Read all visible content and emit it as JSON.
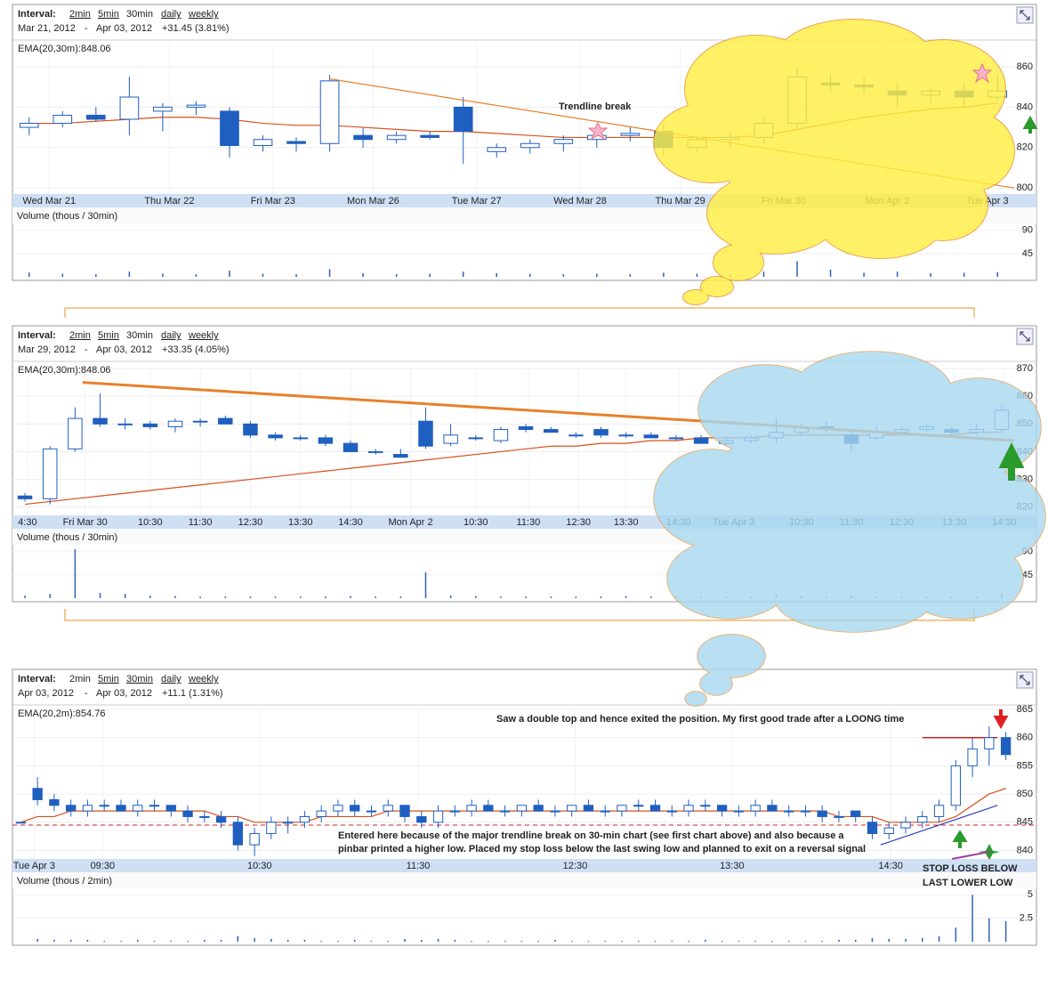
{
  "chart_data": [
    {
      "type": "candlestick",
      "interval_label": "Interval:",
      "intervals": [
        "2min",
        "5min",
        "30min",
        "daily",
        "weekly"
      ],
      "selected": "30min",
      "date_from": "Mar 21, 2012",
      "date_separator": "-",
      "date_to": "Apr 03, 2012",
      "change": "+31.45 (3.81%)",
      "ema_label": "EMA(20,30m):848.06",
      "volume_label": "Volume (thous / 30min)",
      "ylim": [
        797,
        871
      ],
      "yticks": [
        800,
        820,
        840,
        860
      ],
      "xlim": [
        0,
        30
      ],
      "xticks": [
        {
          "value": 1.1,
          "label": "Wed Mar 21"
        },
        {
          "value": 4.7,
          "label": "Thu Mar 22"
        },
        {
          "value": 7.8,
          "label": "Fri Mar 23"
        },
        {
          "value": 10.8,
          "label": "Mon Mar 26"
        },
        {
          "value": 13.9,
          "label": "Tue Mar 27"
        },
        {
          "value": 17.0,
          "label": "Wed Mar 28"
        },
        {
          "value": 20.0,
          "label": "Thu Mar 29"
        },
        {
          "value": 23.1,
          "label": "Fri Mar 30"
        },
        {
          "value": 26.2,
          "label": "Mon Apr 2"
        },
        {
          "value": 29.2,
          "label": "Tue Apr 3"
        }
      ],
      "ohlc": [
        [
          830,
          835,
          826,
          832
        ],
        [
          832,
          838,
          830,
          836
        ],
        [
          836,
          840,
          833,
          834
        ],
        [
          834,
          855,
          826,
          845
        ],
        [
          838,
          842,
          828,
          840
        ],
        [
          840,
          843,
          836,
          841
        ],
        [
          838,
          840,
          815,
          821
        ],
        [
          821,
          826,
          818,
          824
        ],
        [
          823,
          825,
          818,
          822
        ],
        [
          822,
          856,
          818,
          853
        ],
        [
          826,
          830,
          820,
          824
        ],
        [
          824,
          828,
          822,
          826
        ],
        [
          826,
          828,
          824,
          825
        ],
        [
          840,
          845,
          812,
          828
        ],
        [
          818,
          822,
          815,
          820
        ],
        [
          820,
          824,
          817,
          822
        ],
        [
          822,
          826,
          818,
          824
        ],
        [
          824,
          828,
          820,
          826
        ],
        [
          826,
          830,
          823,
          827
        ],
        [
          828,
          832,
          816,
          820
        ],
        [
          820,
          826,
          818,
          824
        ],
        [
          824,
          828,
          820,
          825
        ],
        [
          825,
          835,
          822,
          832
        ],
        [
          832,
          860,
          830,
          855
        ],
        [
          852,
          856,
          848,
          851
        ],
        [
          851,
          855,
          847,
          850
        ],
        [
          848,
          852,
          840,
          846
        ],
        [
          846,
          850,
          842,
          848
        ],
        [
          848,
          852,
          840,
          845
        ],
        [
          845,
          856,
          843,
          848
        ]
      ],
      "ema": [
        832,
        832,
        833,
        834,
        835,
        835,
        834,
        832,
        831,
        831,
        830,
        829,
        828,
        828,
        827,
        826,
        825,
        825,
        825,
        825,
        825,
        825,
        826,
        829,
        832,
        835,
        837,
        839,
        840,
        842
      ],
      "volume": [
        8,
        6,
        5,
        10,
        6,
        5,
        12,
        6,
        5,
        15,
        7,
        5,
        6,
        10,
        7,
        6,
        5,
        6,
        5,
        8,
        6,
        5,
        10,
        30,
        14,
        8,
        10,
        7,
        8,
        9
      ],
      "volume_ylim": [
        0,
        100
      ],
      "volume_yticks": [
        45,
        90
      ],
      "trendline": {
        "x": [
          9.5,
          30
        ],
        "y": [
          854,
          800
        ]
      },
      "annotations": [
        "Trendline break"
      ]
    },
    {
      "type": "candlestick",
      "interval_label": "Interval:",
      "intervals": [
        "2min",
        "5min",
        "30min",
        "daily",
        "weekly"
      ],
      "selected": "30min",
      "date_from": "Mar 29, 2012",
      "date_separator": "-",
      "date_to": "Apr 03, 2012",
      "change": "+33.35 (4.05%)",
      "ema_label": "EMA(20,30m):848.06",
      "volume_label": "Volume (thous / 30min)",
      "ylim": [
        817,
        871
      ],
      "yticks": [
        820,
        830,
        840,
        850,
        860,
        870
      ],
      "xlim": [
        0,
        40
      ],
      "xticks": [
        {
          "value": 0.6,
          "label": "4:30"
        },
        {
          "value": 2.9,
          "label": "Fri Mar 30"
        },
        {
          "value": 5.5,
          "label": "10:30"
        },
        {
          "value": 7.5,
          "label": "11:30"
        },
        {
          "value": 9.5,
          "label": "12:30"
        },
        {
          "value": 11.5,
          "label": "13:30"
        },
        {
          "value": 13.5,
          "label": "14:30"
        },
        {
          "value": 15.9,
          "label": "Mon Apr 2"
        },
        {
          "value": 18.5,
          "label": "10:30"
        },
        {
          "value": 20.6,
          "label": "11:30"
        },
        {
          "value": 22.6,
          "label": "12:30"
        },
        {
          "value": 24.5,
          "label": "13:30"
        },
        {
          "value": 26.6,
          "label": "14:30"
        },
        {
          "value": 28.8,
          "label": "Tue Apr 3"
        },
        {
          "value": 31.5,
          "label": "10:30"
        },
        {
          "value": 33.5,
          "label": "11:30"
        },
        {
          "value": 35.5,
          "label": "12:30"
        },
        {
          "value": 37.6,
          "label": "13:30"
        },
        {
          "value": 39.6,
          "label": "14:30"
        }
      ],
      "ohlc": [
        [
          824,
          825,
          822,
          823
        ],
        [
          823,
          842,
          821,
          841
        ],
        [
          841,
          856,
          840,
          852
        ],
        [
          852,
          861,
          849,
          850
        ],
        [
          850,
          852,
          848,
          850
        ],
        [
          850,
          851,
          848,
          849
        ],
        [
          849,
          852,
          847,
          851
        ],
        [
          851,
          852,
          849,
          851
        ],
        [
          852,
          853,
          850,
          850
        ],
        [
          850,
          851,
          845,
          846
        ],
        [
          846,
          847,
          844,
          845
        ],
        [
          845,
          846,
          844,
          845
        ],
        [
          845,
          846,
          842,
          843
        ],
        [
          843,
          844,
          840,
          840
        ],
        [
          840,
          841,
          839,
          840
        ],
        [
          839,
          841,
          838,
          838
        ],
        [
          851,
          856,
          841,
          842
        ],
        [
          843,
          850,
          842,
          846
        ],
        [
          845,
          846,
          844,
          845
        ],
        [
          844,
          849,
          843,
          848
        ],
        [
          849,
          850,
          847,
          848
        ],
        [
          848,
          849,
          847,
          847
        ],
        [
          846,
          847,
          845,
          846
        ],
        [
          848,
          849,
          845,
          846
        ],
        [
          846,
          847,
          845,
          846
        ],
        [
          846,
          847,
          845,
          845
        ],
        [
          845,
          846,
          844,
          845
        ],
        [
          845,
          846,
          843,
          843
        ],
        [
          843,
          845,
          842,
          844
        ],
        [
          844,
          846,
          843,
          845
        ],
        [
          845,
          852,
          843,
          847
        ],
        [
          847,
          850,
          846,
          849
        ],
        [
          849,
          851,
          847,
          848
        ],
        [
          846,
          848,
          840,
          843
        ],
        [
          845,
          849,
          844,
          847
        ],
        [
          847,
          849,
          846,
          848
        ],
        [
          848,
          850,
          847,
          849
        ],
        [
          848,
          849,
          846,
          847
        ],
        [
          847,
          850,
          846,
          848
        ],
        [
          848,
          857,
          847,
          855
        ]
      ],
      "ema": [
        821,
        822,
        823,
        824,
        825,
        826,
        827,
        828,
        829,
        830,
        831,
        832,
        833,
        834,
        835,
        836,
        837,
        838,
        839,
        840,
        841,
        842,
        842,
        843,
        843,
        844,
        844,
        845,
        845,
        845,
        846,
        846,
        846,
        846,
        846,
        846,
        846,
        846,
        847,
        847
      ],
      "volume": [
        5,
        8,
        95,
        10,
        8,
        5,
        4,
        3,
        3,
        3,
        3,
        3,
        3,
        4,
        3,
        3,
        50,
        5,
        4,
        3,
        3,
        3,
        3,
        3,
        4,
        3,
        3,
        3,
        3,
        3,
        6,
        4,
        3,
        5,
        3,
        3,
        3,
        3,
        3,
        8
      ],
      "volume_ylim": [
        0,
        100
      ],
      "volume_yticks": [
        45,
        90
      ],
      "trendline": {
        "x": [
          2.8,
          40
        ],
        "y": [
          865,
          844
        ]
      },
      "annotations": []
    },
    {
      "type": "candlestick",
      "interval_label": "Interval:",
      "intervals": [
        "2min",
        "5min",
        "30min",
        "daily",
        "weekly"
      ],
      "selected": "2min",
      "date_from": "Apr 03, 2012",
      "date_separator": "-",
      "date_to": "Apr 03, 2012",
      "change": "+11.1 (1.31%)",
      "ema_label": "EMA(20,2m):854.76",
      "volume_label": "Volume (thous / 2min)",
      "ylim": [
        838.5,
        865
      ],
      "yticks": [
        840,
        845,
        850,
        855,
        860,
        865
      ],
      "xlim": [
        0,
        60
      ],
      "xticks": [
        {
          "value": 1.3,
          "label": "Tue Apr 3"
        },
        {
          "value": 5.4,
          "label": "09:30"
        },
        {
          "value": 14.8,
          "label": "10:30"
        },
        {
          "value": 24.3,
          "label": "11:30"
        },
        {
          "value": 33.7,
          "label": "12:30"
        },
        {
          "value": 43.1,
          "label": "13:30"
        },
        {
          "value": 52.6,
          "label": "14:30"
        }
      ],
      "ohlc": [
        [
          845,
          845,
          845,
          845
        ],
        [
          851,
          853,
          848,
          849
        ],
        [
          849,
          850,
          847,
          848
        ],
        [
          848,
          849,
          846,
          847
        ],
        [
          847,
          849,
          846,
          848
        ],
        [
          848,
          849,
          847,
          848
        ],
        [
          848,
          849,
          847,
          847
        ],
        [
          847,
          849,
          846,
          848
        ],
        [
          848,
          849,
          847,
          848
        ],
        [
          848,
          848,
          846,
          847
        ],
        [
          847,
          848,
          845,
          846
        ],
        [
          846,
          847,
          845,
          846
        ],
        [
          846,
          847,
          844,
          845
        ],
        [
          845,
          846,
          840,
          841
        ],
        [
          841,
          844,
          839,
          843
        ],
        [
          843,
          846,
          842,
          845
        ],
        [
          845,
          846,
          843,
          845
        ],
        [
          845,
          847,
          844,
          846
        ],
        [
          846,
          848,
          845,
          847
        ],
        [
          847,
          849,
          846,
          848
        ],
        [
          848,
          849,
          846,
          847
        ],
        [
          847,
          848,
          846,
          847
        ],
        [
          847,
          849,
          846,
          848
        ],
        [
          848,
          848,
          845,
          846
        ],
        [
          846,
          847,
          844,
          845
        ],
        [
          845,
          848,
          844,
          847
        ],
        [
          847,
          848,
          846,
          847
        ],
        [
          847,
          849,
          846,
          848
        ],
        [
          848,
          849,
          847,
          847
        ],
        [
          847,
          848,
          846,
          847
        ],
        [
          847,
          848,
          846,
          848
        ],
        [
          848,
          849,
          847,
          847
        ],
        [
          847,
          848,
          846,
          847
        ],
        [
          847,
          848,
          846,
          848
        ],
        [
          848,
          849,
          847,
          847
        ],
        [
          847,
          848,
          846,
          847
        ],
        [
          847,
          848,
          846,
          848
        ],
        [
          848,
          849,
          847,
          848
        ],
        [
          848,
          849,
          847,
          847
        ],
        [
          847,
          848,
          846,
          847
        ],
        [
          847,
          849,
          846,
          848
        ],
        [
          848,
          849,
          847,
          848
        ],
        [
          848,
          848,
          846,
          847
        ],
        [
          847,
          848,
          846,
          847
        ],
        [
          847,
          849,
          846,
          848
        ],
        [
          848,
          849,
          847,
          847
        ],
        [
          847,
          848,
          846,
          847
        ],
        [
          847,
          848,
          846,
          847
        ],
        [
          847,
          848,
          845,
          846
        ],
        [
          846,
          847,
          845,
          846
        ],
        [
          847,
          847,
          845,
          846
        ],
        [
          845,
          846,
          842,
          843
        ],
        [
          843,
          845,
          842,
          844
        ],
        [
          844,
          846,
          843,
          845
        ],
        [
          845,
          847,
          844,
          846
        ],
        [
          846,
          849,
          845,
          848
        ],
        [
          848,
          856,
          847,
          855
        ],
        [
          855,
          860,
          853,
          858
        ],
        [
          858,
          862,
          855,
          860
        ],
        [
          860,
          861,
          856,
          857
        ]
      ],
      "ema": [
        845,
        846,
        846,
        847,
        847,
        847,
        847,
        847,
        847,
        847,
        847,
        847,
        846,
        846,
        845,
        845,
        845,
        845,
        846,
        846,
        846,
        846,
        847,
        847,
        847,
        847,
        847,
        847,
        847,
        847,
        847,
        847,
        847,
        847,
        847,
        847,
        847,
        847,
        847,
        847,
        847,
        847,
        847,
        847,
        847,
        847,
        847,
        847,
        847,
        846,
        846,
        846,
        845,
        845,
        845,
        845,
        846,
        848,
        850,
        851
      ],
      "volume": [
        0,
        0.3,
        0.2,
        0.2,
        0.2,
        0.1,
        0.1,
        0.2,
        0.1,
        0.1,
        0.1,
        0.2,
        0.2,
        0.6,
        0.4,
        0.3,
        0.2,
        0.2,
        0.1,
        0.1,
        0.2,
        0.1,
        0.1,
        0.3,
        0.2,
        0.3,
        0.2,
        0.1,
        0.1,
        0.1,
        0.1,
        0.1,
        0.2,
        0.1,
        0.1,
        0.1,
        0.1,
        0.1,
        0.1,
        0.1,
        0.1,
        0.2,
        0.1,
        0.1,
        0.1,
        0.1,
        0.1,
        0.1,
        0.1,
        0.2,
        0.2,
        0.4,
        0.3,
        0.3,
        0.4,
        0.6,
        1.5,
        5,
        2.5,
        2.2
      ],
      "volume_ylim": [
        0,
        5.5
      ],
      "volume_yticks": [
        2.5,
        5
      ],
      "trendline": {
        "x": [
          52,
          59
        ],
        "y": [
          841,
          848
        ]
      },
      "support_line": 844.5,
      "resistance_line": 860,
      "annotations": [
        "Saw a double top and hence exited the position. My first good trade after a LOONG time",
        "Entered here because of the major trendline break on 30-min chart (see first chart above) and also because a",
        "pinbar printed a higher low. Placed my stop loss below the last swing low and planned to exit on a reversal signal",
        "STOP LOSS BELOW",
        "LAST LOWER LOW"
      ]
    }
  ]
}
